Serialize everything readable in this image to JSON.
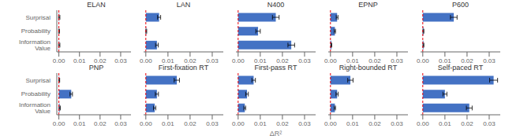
{
  "chart_data": [
    {
      "type": "bar",
      "orientation": "horizontal",
      "title": "ELAN",
      "categories": [
        "Surprisal",
        "Probability",
        "Information Value"
      ],
      "values": [
        0.0002,
        0.0001,
        0.0002
      ],
      "errors": [
        0.0003,
        0.0002,
        0.0003
      ],
      "color": "#4472C4",
      "xlim": [
        -0.001,
        0.035
      ],
      "xticks": [
        {
          "value": 0.0,
          "label": "0.00"
        },
        0.01,
        0.02,
        0.03
      ],
      "reference_line": {
        "value": 0.0,
        "color": "#E8000B",
        "line_style": "dashed"
      }
    },
    {
      "type": "bar",
      "orientation": "horizontal",
      "title": "LAN",
      "categories": [
        "Surprisal",
        "Probability",
        "Information Value"
      ],
      "values": [
        0.006,
        0.0002,
        0.005
      ],
      "errors": [
        0.0007,
        0.0002,
        0.0006
      ],
      "color": "#4472C4",
      "xlim": [
        -0.001,
        0.035
      ],
      "xticks": [
        {
          "value": 0.0,
          "label": "0.00"
        },
        0.01,
        0.02,
        0.03
      ],
      "reference_line": {
        "value": 0.0,
        "color": "#E8000B",
        "line_style": "dashed"
      },
      "tick_labels": "x"
    },
    {
      "type": "bar",
      "orientation": "horizontal",
      "title": "N400",
      "categories": [
        "Surprisal",
        "Probability",
        "Information Value"
      ],
      "values": [
        0.017,
        0.009,
        0.024
      ],
      "errors": [
        0.0015,
        0.001,
        0.0015
      ],
      "color": "#4472C4",
      "xlim": [
        -0.001,
        0.035
      ],
      "xticks": [
        {
          "value": 0.0,
          "label": "0.00"
        },
        0.01,
        0.02,
        0.03
      ],
      "reference_line": {
        "value": 0.0,
        "color": "#E8000B",
        "line_style": "dashed"
      },
      "tick_labels": "x"
    },
    {
      "type": "bar",
      "orientation": "horizontal",
      "title": "EPNP",
      "categories": [
        "Surprisal",
        "Probability",
        "Information Value"
      ],
      "values": [
        0.003,
        0.002,
        0.0004
      ],
      "errors": [
        0.0004,
        0.0003,
        0.0002
      ],
      "color": "#4472C4",
      "xlim": [
        -0.001,
        0.035
      ],
      "xticks": [
        {
          "value": 0.0,
          "label": "0.00"
        },
        0.01,
        0.02,
        0.03
      ],
      "reference_line": {
        "value": 0.0,
        "color": "#E8000B",
        "line_style": "dashed"
      },
      "tick_labels": "x"
    },
    {
      "type": "bar",
      "orientation": "horizontal",
      "title": "P600",
      "categories": [
        "Surprisal",
        "Probability",
        "Information Value"
      ],
      "values": [
        0.014,
        0.0003,
        0.0003
      ],
      "errors": [
        0.0015,
        0.0002,
        0.0002
      ],
      "color": "#4472C4",
      "xlim": [
        -0.001,
        0.035
      ],
      "xticks": [
        {
          "value": 0.0,
          "label": "0.00"
        },
        0.01,
        0.02,
        0.03
      ],
      "reference_line": {
        "value": 0.0,
        "color": "#E8000B",
        "line_style": "dashed"
      },
      "tick_labels": "x"
    },
    {
      "type": "bar",
      "orientation": "horizontal",
      "title": "PNP",
      "categories": [
        "Surprisal",
        "Probability",
        "Information Value"
      ],
      "values": [
        0.0002,
        0.006,
        0.0004
      ],
      "errors": [
        0.0002,
        0.0006,
        0.0003
      ],
      "color": "#4472C4",
      "xlim": [
        -0.001,
        0.035
      ],
      "xticks": [
        {
          "value": 0.0,
          "label": "0.00"
        },
        0.01,
        0.02,
        0.03
      ],
      "reference_line": {
        "value": 0.0,
        "color": "#E8000B",
        "line_style": "dashed"
      }
    },
    {
      "type": "bar",
      "orientation": "horizontal",
      "title": "First-fixation RT",
      "categories": [
        "Surprisal",
        "Probability",
        "Information Value"
      ],
      "values": [
        0.014,
        0.005,
        0.004
      ],
      "errors": [
        0.0012,
        0.0007,
        0.0005
      ],
      "color": "#4472C4",
      "xlim": [
        -0.001,
        0.035
      ],
      "xticks": [
        {
          "value": 0.0,
          "label": "0.00"
        },
        0.01,
        0.02,
        0.03
      ],
      "reference_line": {
        "value": 0.0,
        "color": "#E8000B",
        "line_style": "dashed"
      },
      "tick_labels": "x"
    },
    {
      "type": "bar",
      "orientation": "horizontal",
      "title": "First-pass RT",
      "categories": [
        "Surprisal",
        "Probability",
        "Information Value"
      ],
      "values": [
        0.007,
        0.004,
        0.003
      ],
      "errors": [
        0.0008,
        0.0006,
        0.0004
      ],
      "color": "#4472C4",
      "xlim": [
        -0.001,
        0.035
      ],
      "xticks": [
        {
          "value": 0.0,
          "label": "0.00"
        },
        0.01,
        0.02,
        0.03
      ],
      "reference_line": {
        "value": 0.0,
        "color": "#E8000B",
        "line_style": "dashed"
      },
      "tick_labels": "x",
      "xlabel": "ΔR²"
    },
    {
      "type": "bar",
      "orientation": "horizontal",
      "title": "Right-bounded RT",
      "categories": [
        "Surprisal",
        "Probability",
        "Information Value"
      ],
      "values": [
        0.009,
        0.003,
        0.002
      ],
      "errors": [
        0.0012,
        0.0005,
        0.0003
      ],
      "color": "#4472C4",
      "xlim": [
        -0.001,
        0.035
      ],
      "xticks": [
        {
          "value": 0.0,
          "label": "0.00"
        },
        0.01,
        0.02,
        0.03
      ],
      "reference_line": {
        "value": 0.0,
        "color": "#E8000B",
        "line_style": "dashed"
      },
      "tick_labels": "x"
    },
    {
      "type": "bar",
      "orientation": "horizontal",
      "title": "Self-paced RT",
      "categories": [
        "Surprisal",
        "Probability",
        "Information Value"
      ],
      "values": [
        0.032,
        0.01,
        0.021
      ],
      "errors": [
        0.0018,
        0.0009,
        0.0013
      ],
      "color": "#4472C4",
      "xlim": [
        -0.001,
        0.035
      ],
      "xticks": [
        {
          "value": 0.0,
          "label": "0.00"
        },
        0.01,
        0.02,
        0.03
      ],
      "reference_line": {
        "value": 0.0,
        "color": "#E8000B",
        "line_style": "dashed"
      },
      "tick_labels": "x"
    }
  ]
}
